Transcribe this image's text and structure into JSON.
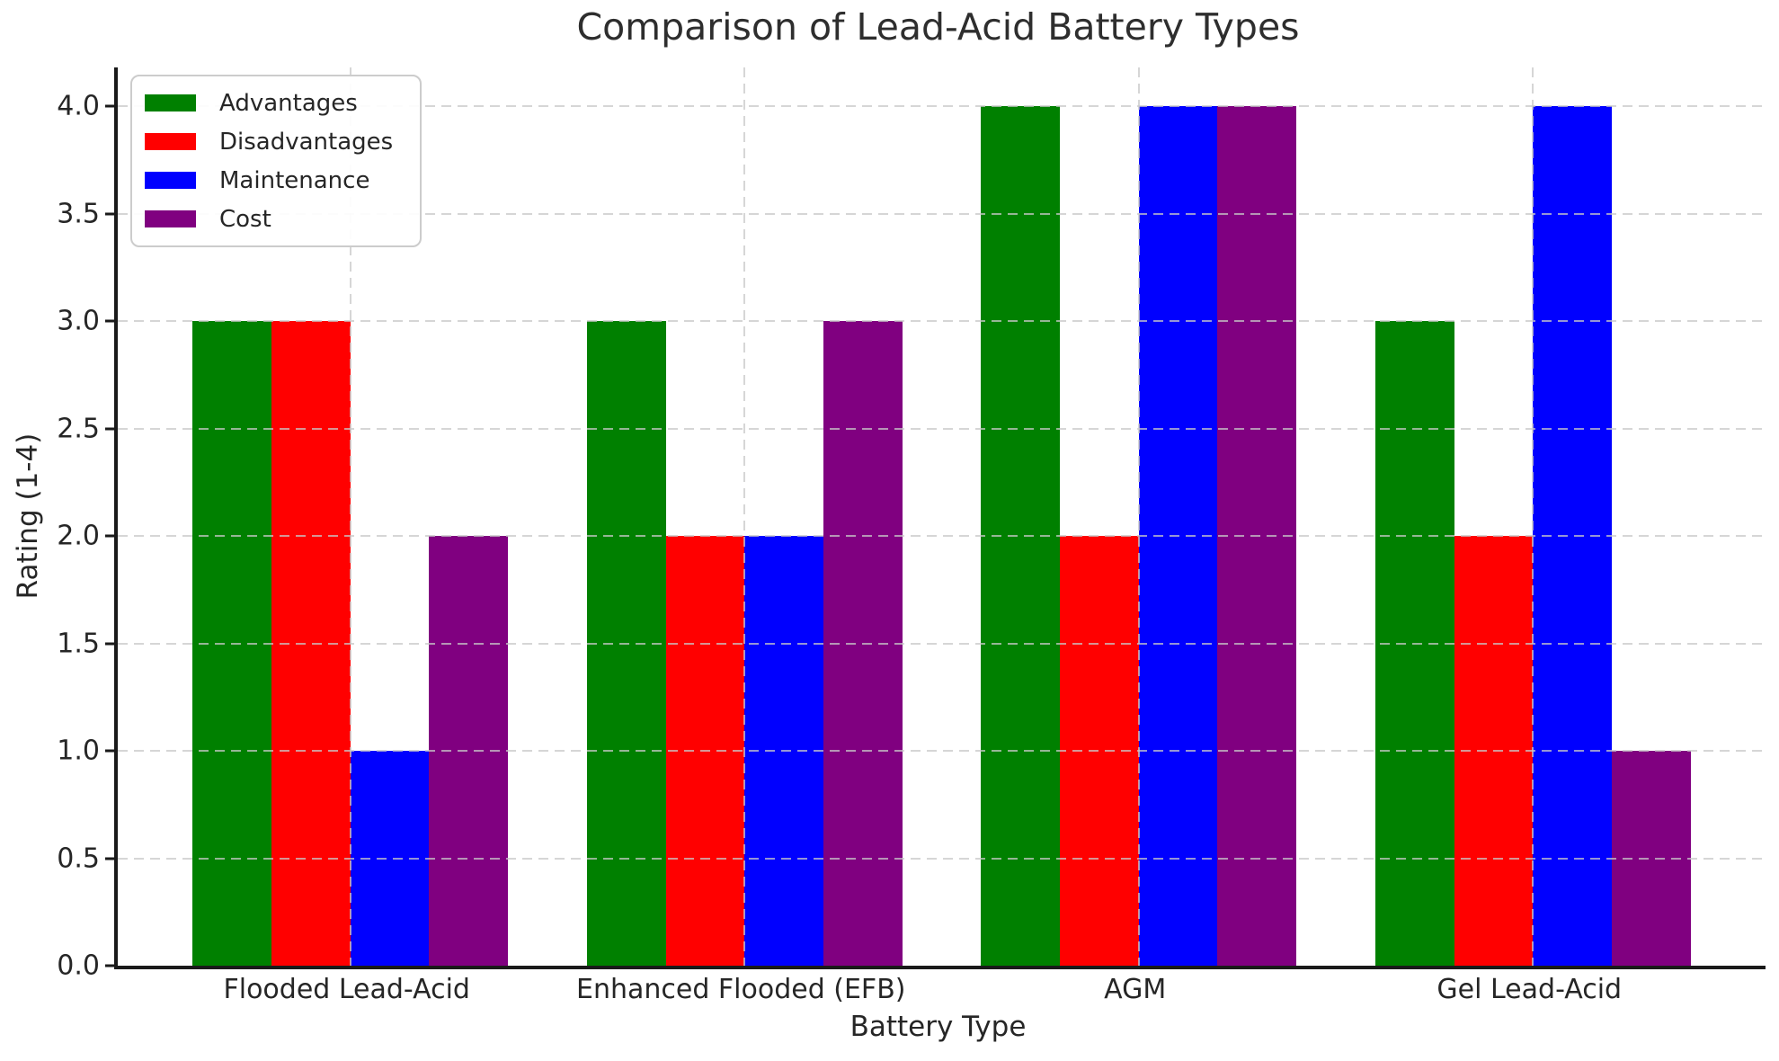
{
  "chart_data": {
    "type": "bar",
    "title": "Comparison of Lead-Acid Battery Types",
    "xlabel": "Battery Type",
    "ylabel": "Rating (1-4)",
    "categories": [
      "Flooded Lead-Acid",
      "Enhanced Flooded (EFB)",
      "AGM",
      "Gel Lead-Acid"
    ],
    "series": [
      {
        "name": "Advantages",
        "color": "#008000",
        "values": [
          3,
          3,
          4,
          3
        ]
      },
      {
        "name": "Disadvantages",
        "color": "#ff0000",
        "values": [
          3,
          2,
          2,
          2
        ]
      },
      {
        "name": "Maintenance",
        "color": "#0000ff",
        "values": [
          1,
          2,
          4,
          4
        ]
      },
      {
        "name": "Cost",
        "color": "#800080",
        "values": [
          2,
          3,
          4,
          1
        ]
      }
    ],
    "bar_width": 0.2,
    "group_width": 0.8,
    "xlim": [
      -0.59,
      3.59
    ],
    "ylim": [
      0,
      4.18
    ],
    "yticks": [
      0.0,
      0.5,
      1.0,
      1.5,
      2.0,
      2.5,
      3.0,
      3.5,
      4.0
    ],
    "ytick_labels": [
      "0.0",
      "0.5",
      "1.0",
      "1.5",
      "2.0",
      "2.5",
      "3.0",
      "3.5",
      "4.0"
    ],
    "grid": {
      "style": "dashed",
      "horizontal": true,
      "vertical": true,
      "above_bars": true
    },
    "legend_position": "upper-left"
  },
  "colors": {
    "background": "#ffffff",
    "text": "#262626",
    "spine": "#1a1a1a",
    "gridline": "#c8c8c8",
    "legend_border": "#cccccc"
  }
}
